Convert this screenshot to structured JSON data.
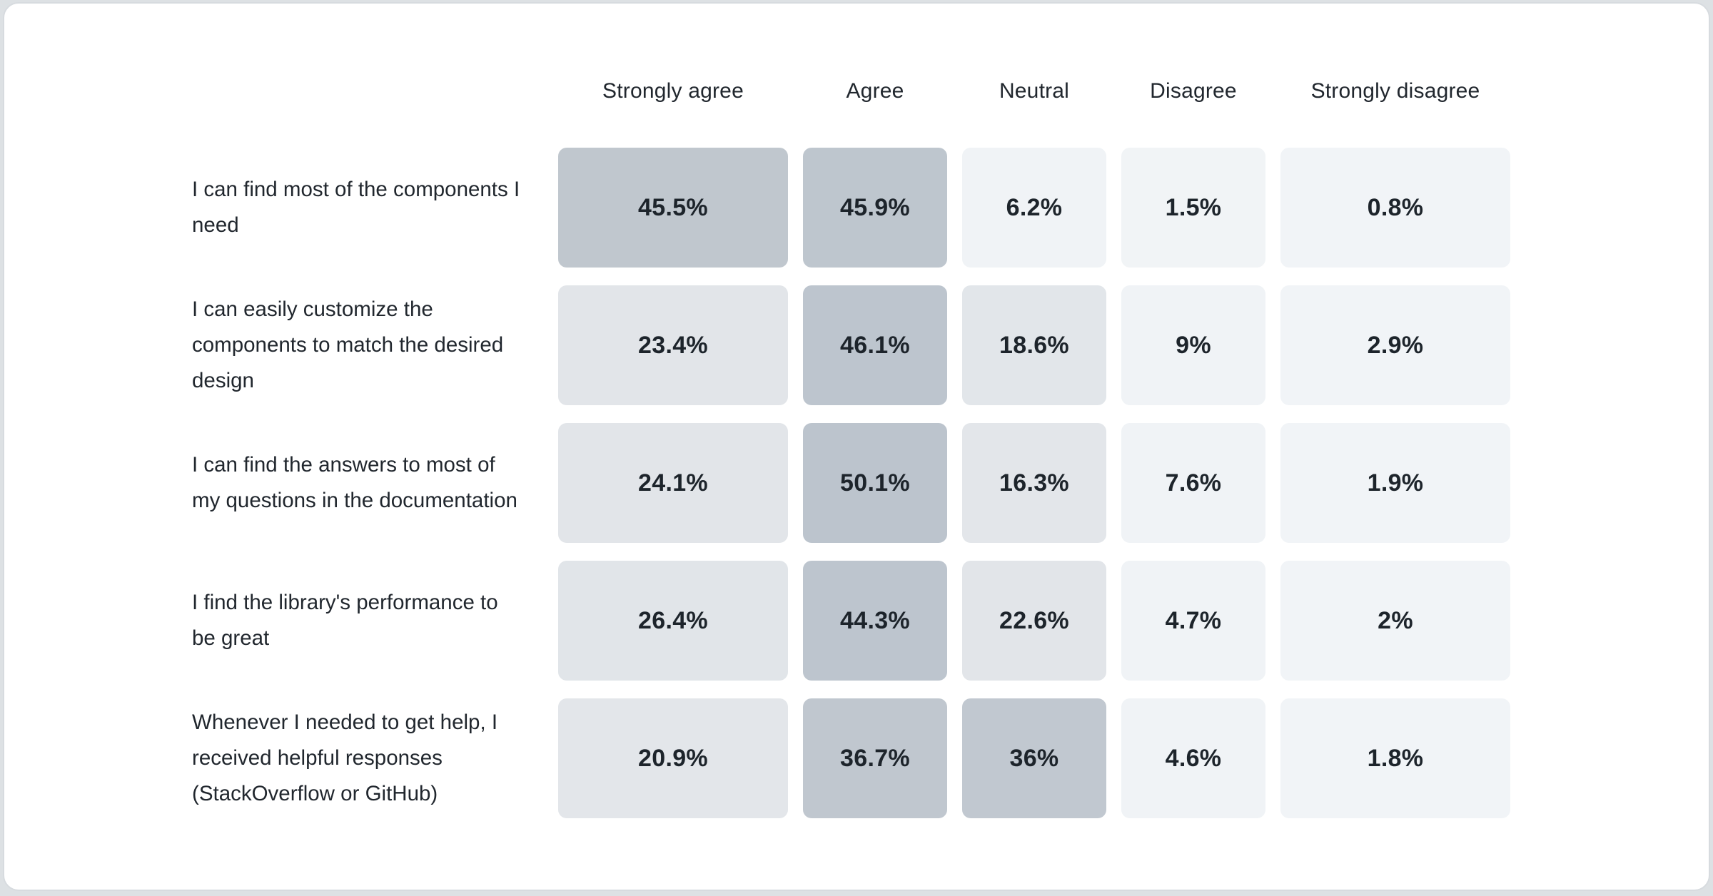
{
  "page": {
    "background_color": "#dde1e4",
    "card_background": "#ffffff",
    "card_border_color": "#d7dbdf"
  },
  "chart_data": {
    "type": "heatmap",
    "title": "",
    "columns": [
      "Strongly agree",
      "Agree",
      "Neutral",
      "Disagree",
      "Strongly disagree"
    ],
    "rows": [
      {
        "label": "I can find most of the components I need",
        "values": [
          45.5,
          45.9,
          6.2,
          1.5,
          0.8
        ],
        "value_labels": [
          "45.5%",
          "45.9%",
          "6.2%",
          "1.5%",
          "0.8%"
        ],
        "cell_colors": [
          "#c0c7ce",
          "#bec6ce",
          "#f0f3f6",
          "#f1f4f6",
          "#f1f4f7"
        ]
      },
      {
        "label": "I can easily customize the components to match the desired design",
        "values": [
          23.4,
          46.1,
          18.6,
          9,
          2.9
        ],
        "value_labels": [
          "23.4%",
          "46.1%",
          "18.6%",
          "9%",
          "2.9%"
        ],
        "cell_colors": [
          "#e2e5e9",
          "#bdc5ce",
          "#e2e6ea",
          "#f0f3f6",
          "#f1f4f7"
        ]
      },
      {
        "label": "I can find the answers to most of my questions in the documentation",
        "values": [
          24.1,
          50.1,
          16.3,
          7.6,
          1.9
        ],
        "value_labels": [
          "24.1%",
          "50.1%",
          "16.3%",
          "7.6%",
          "1.9%"
        ],
        "cell_colors": [
          "#e2e5e9",
          "#bcc4cd",
          "#e3e6ea",
          "#f0f3f6",
          "#f1f4f7"
        ]
      },
      {
        "label": "I find the library's performance to be great",
        "values": [
          26.4,
          44.3,
          22.6,
          4.7,
          2
        ],
        "value_labels": [
          "26.4%",
          "44.3%",
          "22.6%",
          "4.7%",
          "2%"
        ],
        "cell_colors": [
          "#e1e5e9",
          "#bdc5ce",
          "#e2e5e9",
          "#f0f3f6",
          "#f1f4f7"
        ]
      },
      {
        "label": "Whenever I needed to get help, I received helpful responses (StackOverflow or GitHub)",
        "values": [
          20.9,
          36.7,
          36,
          4.6,
          1.8
        ],
        "value_labels": [
          "20.9%",
          "36.7%",
          "36%",
          "4.6%",
          "1.8%"
        ],
        "cell_colors": [
          "#e3e6ea",
          "#c0c7cf",
          "#c1c8d0",
          "#f0f3f6",
          "#f1f4f7"
        ]
      }
    ],
    "color_scale": {
      "high": "#bdc5ce",
      "mid": "#e2e5e9",
      "low": "#f1f4f6",
      "note": "darker cell = higher percentage"
    },
    "legend_position": "none",
    "grid": false
  }
}
